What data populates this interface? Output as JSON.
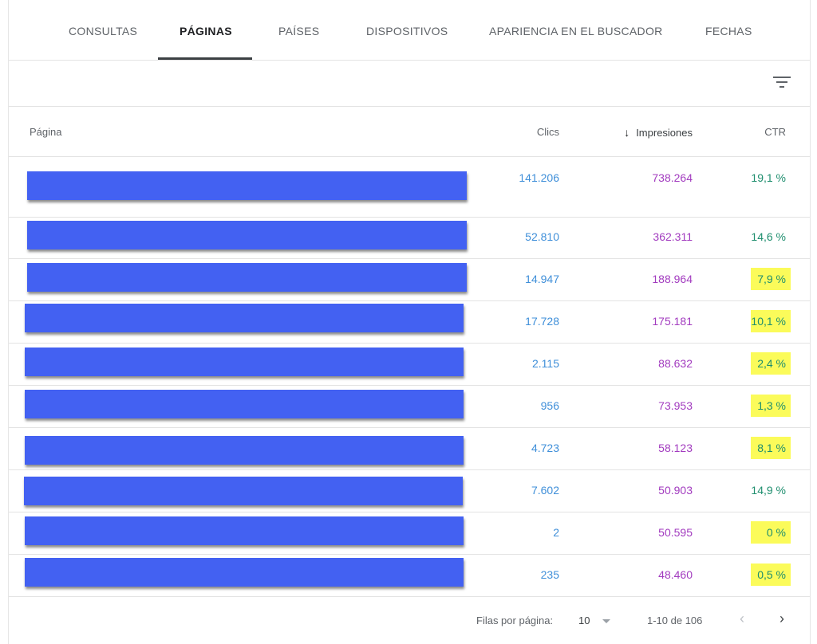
{
  "tabs": [
    {
      "label": "CONSULTAS"
    },
    {
      "label": "PÁGINAS"
    },
    {
      "label": "PAÍSES"
    },
    {
      "label": "DISPOSITIVOS"
    },
    {
      "label": "APARIENCIA EN EL BUSCADOR"
    },
    {
      "label": "FECHAS"
    }
  ],
  "active_tab": "PÁGINAS",
  "toolbar": {
    "filter_icon": "filter-list-icon"
  },
  "table": {
    "columns": {
      "page": "Página",
      "clicks": "Clics",
      "impressions": "Impresiones",
      "ctr": "CTR",
      "sort_icon": "arrow-down-icon"
    },
    "rows": [
      {
        "clicks": "141.206",
        "impressions": "738.264",
        "ctr": "19,1 %",
        "ctr_highlighted": false
      },
      {
        "clicks": "52.810",
        "impressions": "362.311",
        "ctr": "14,6 %",
        "ctr_highlighted": false
      },
      {
        "clicks": "14.947",
        "impressions": "188.964",
        "ctr": "7,9 %",
        "ctr_highlighted": true
      },
      {
        "clicks": "17.728",
        "impressions": "175.181",
        "ctr": "10,1 %",
        "ctr_highlighted": true
      },
      {
        "clicks": "2.115",
        "impressions": "88.632",
        "ctr": "2,4 %",
        "ctr_highlighted": true
      },
      {
        "clicks": "956",
        "impressions": "73.953",
        "ctr": "1,3 %",
        "ctr_highlighted": true
      },
      {
        "clicks": "4.723",
        "impressions": "58.123",
        "ctr": "8,1 %",
        "ctr_highlighted": true
      },
      {
        "clicks": "7.602",
        "impressions": "50.903",
        "ctr": "14,9 %",
        "ctr_highlighted": false
      },
      {
        "clicks": "2",
        "impressions": "50.595",
        "ctr": "0 %",
        "ctr_highlighted": true
      },
      {
        "clicks": "235",
        "impressions": "48.460",
        "ctr": "0,5 %",
        "ctr_highlighted": true
      }
    ]
  },
  "pagination": {
    "rows_per_page_label": "Filas por página:",
    "rows_per_page": "10",
    "range": "1-10 de 106",
    "prev_icon": "chevron-left-icon",
    "next_icon": "chevron-right-icon"
  },
  "colors": {
    "redaction_bar": "#4361f2",
    "clicks": "#3f8fd9",
    "impressions": "#a23bbf",
    "ctr": "#1e8e6e",
    "highlight": "#fbfb5a"
  }
}
